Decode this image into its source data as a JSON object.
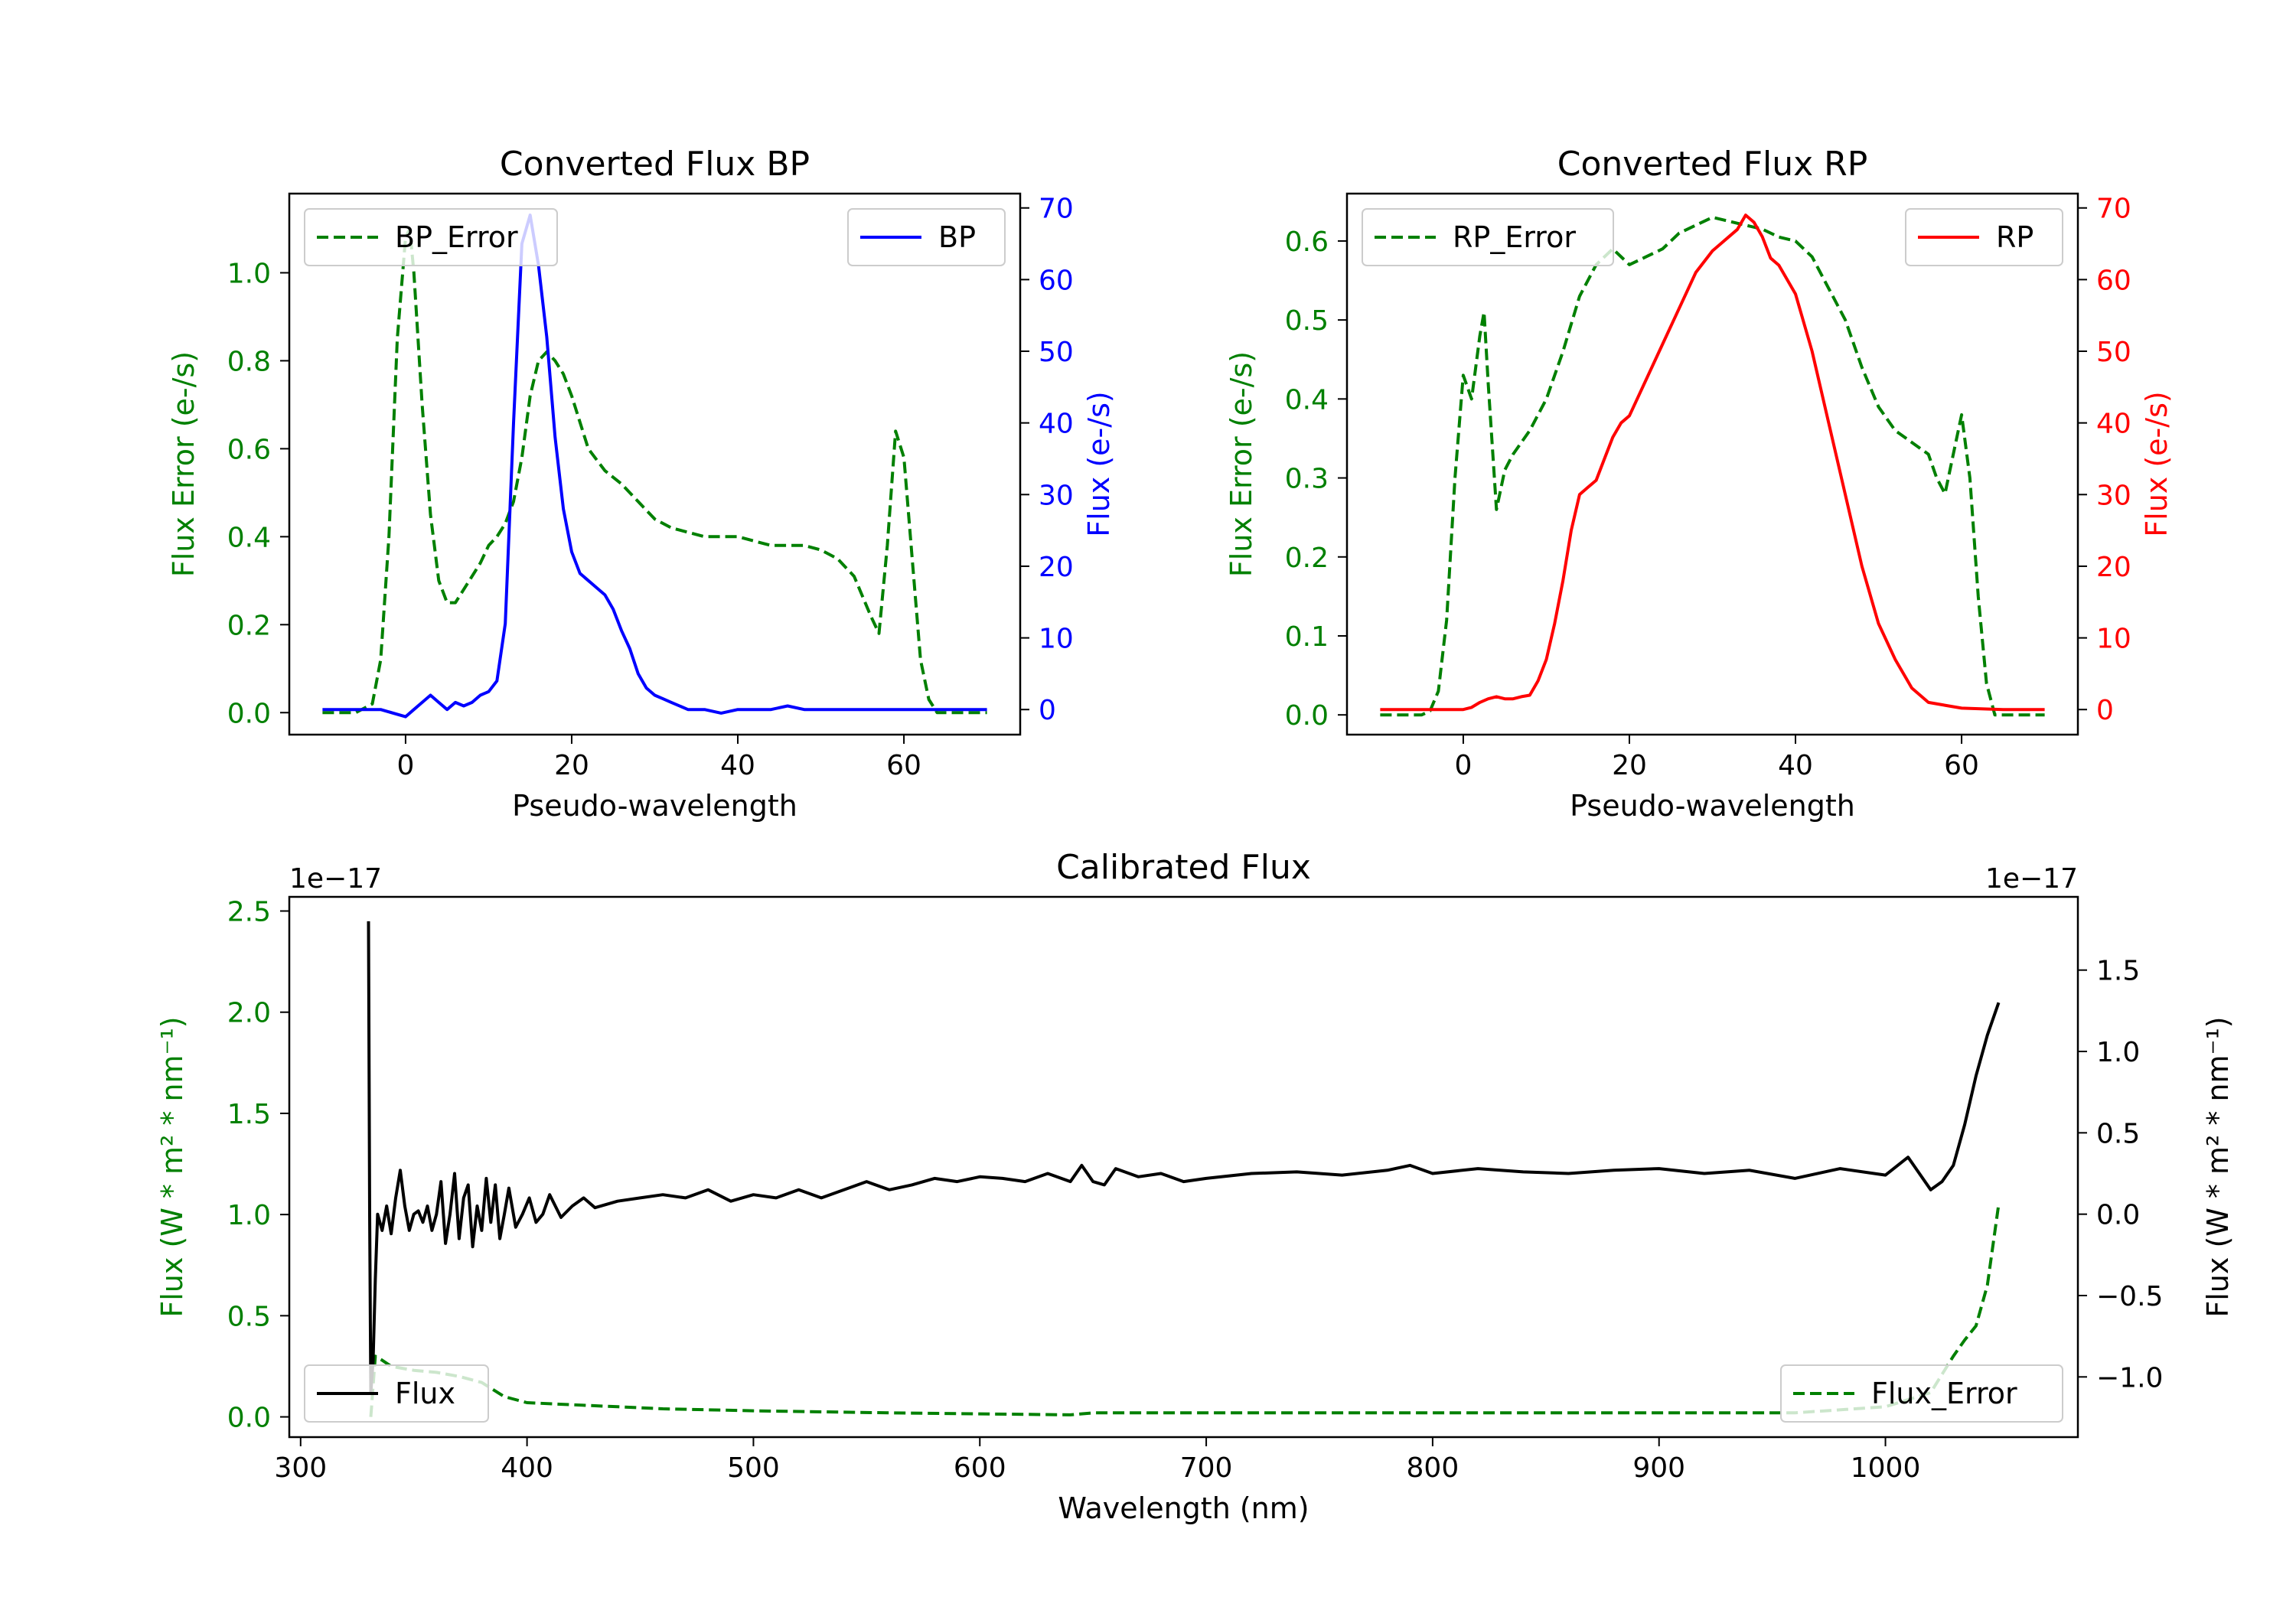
{
  "chart_data": [
    {
      "id": "bp",
      "type": "line",
      "title": "Converted Flux BP",
      "xlabel": "Pseudo-wavelength",
      "xlim": [
        -14,
        74
      ],
      "xticks": [
        0,
        20,
        40,
        60
      ],
      "left_axis": {
        "label": "Flux Error (e-/s)",
        "color": "#008000",
        "ylim": [
          -0.05,
          1.18
        ],
        "ticks": [
          0.0,
          0.2,
          0.4,
          0.6,
          0.8,
          1.0
        ],
        "tick_labels": [
          "0.0",
          "0.2",
          "0.4",
          "0.6",
          "0.8",
          "1.0"
        ]
      },
      "right_axis": {
        "label": "Flux (e-/s)",
        "color": "#0000ff",
        "ylim": [
          -3.5,
          72
        ],
        "ticks": [
          0,
          10,
          20,
          30,
          40,
          50,
          60,
          70
        ],
        "tick_labels": [
          "0",
          "10",
          "20",
          "30",
          "40",
          "50",
          "60",
          "70"
        ]
      },
      "legend_left": {
        "label": "BP_Error",
        "position": "upper-left"
      },
      "legend_right": {
        "label": "BP",
        "position": "upper-right"
      },
      "series": [
        {
          "name": "BP_Error",
          "axis": "left",
          "color": "#008000",
          "dash": true,
          "x": [
            -10,
            -6,
            -4,
            -3,
            -2,
            -1,
            0,
            0.5,
            1,
            2,
            3,
            4,
            5,
            6,
            7,
            8,
            9,
            10,
            11,
            12,
            13,
            14,
            15,
            16,
            17,
            18,
            19,
            20,
            22,
            24,
            26,
            28,
            30,
            32,
            34,
            36,
            38,
            40,
            42,
            44,
            46,
            48,
            50,
            52,
            54,
            56,
            57,
            58,
            59,
            60,
            61,
            62,
            63,
            64,
            66,
            70
          ],
          "y": [
            0.0,
            0.0,
            0.02,
            0.12,
            0.4,
            0.85,
            1.08,
            1.1,
            1.0,
            0.7,
            0.45,
            0.3,
            0.25,
            0.25,
            0.28,
            0.31,
            0.34,
            0.38,
            0.4,
            0.43,
            0.48,
            0.58,
            0.72,
            0.8,
            0.82,
            0.8,
            0.77,
            0.72,
            0.6,
            0.55,
            0.52,
            0.48,
            0.44,
            0.42,
            0.41,
            0.4,
            0.4,
            0.4,
            0.39,
            0.38,
            0.38,
            0.38,
            0.37,
            0.35,
            0.31,
            0.22,
            0.18,
            0.38,
            0.64,
            0.58,
            0.35,
            0.12,
            0.03,
            0.0,
            0.0,
            0.0
          ]
        },
        {
          "name": "BP",
          "axis": "right",
          "color": "#0000ff",
          "dash": false,
          "x": [
            -10,
            -3,
            0,
            1,
            2,
            3,
            4,
            5,
            6,
            7,
            8,
            9,
            10,
            11,
            12,
            13,
            14,
            15,
            16,
            17,
            18,
            19,
            20,
            21,
            22,
            23,
            24,
            25,
            26,
            27,
            28,
            29,
            30,
            31,
            32,
            34,
            36,
            38,
            40,
            42,
            44,
            46,
            48,
            50,
            55,
            60,
            65,
            70
          ],
          "y": [
            0,
            0,
            -1,
            0,
            1,
            2,
            1,
            0,
            1,
            0.5,
            1,
            2,
            2.5,
            4,
            12,
            40,
            65,
            69,
            62,
            52,
            38,
            28,
            22,
            19,
            18,
            17,
            16,
            14,
            11,
            8.5,
            5,
            3,
            2,
            1.5,
            1,
            0,
            0,
            -0.5,
            0,
            0,
            0,
            0.5,
            0,
            0,
            0,
            0,
            0,
            0
          ]
        }
      ]
    },
    {
      "id": "rp",
      "type": "line",
      "title": "Converted Flux RP",
      "xlabel": "Pseudo-wavelength",
      "xlim": [
        -14,
        74
      ],
      "xticks": [
        0,
        20,
        40,
        60
      ],
      "left_axis": {
        "label": "Flux Error (e-/s)",
        "color": "#008000",
        "ylim": [
          -0.025,
          0.66
        ],
        "ticks": [
          0.0,
          0.1,
          0.2,
          0.3,
          0.4,
          0.5,
          0.6
        ],
        "tick_labels": [
          "0.0",
          "0.1",
          "0.2",
          "0.3",
          "0.4",
          "0.5",
          "0.6"
        ]
      },
      "right_axis": {
        "label": "Flux (e-/s)",
        "color": "#ff0000",
        "ylim": [
          -3.5,
          72
        ],
        "ticks": [
          0,
          10,
          20,
          30,
          40,
          50,
          60,
          70
        ],
        "tick_labels": [
          "0",
          "10",
          "20",
          "30",
          "40",
          "50",
          "60",
          "70"
        ]
      },
      "legend_left": {
        "label": "RP_Error",
        "position": "upper-left"
      },
      "legend_right": {
        "label": "RP",
        "position": "upper-right"
      },
      "series": [
        {
          "name": "RP_Error",
          "axis": "left",
          "color": "#008000",
          "dash": true,
          "x": [
            -10,
            -5,
            -4,
            -3,
            -2,
            -1,
            0,
            1,
            2,
            2.5,
            3,
            4,
            5,
            6,
            8,
            10,
            12,
            14,
            16,
            18,
            20,
            22,
            24,
            26,
            28,
            30,
            32,
            34,
            36,
            38,
            40,
            42,
            44,
            46,
            48,
            50,
            52,
            54,
            56,
            57,
            58,
            59,
            60,
            61,
            62,
            63,
            64,
            70
          ],
          "y": [
            0.0,
            0.0,
            0.005,
            0.03,
            0.12,
            0.3,
            0.43,
            0.4,
            0.48,
            0.51,
            0.42,
            0.26,
            0.31,
            0.33,
            0.36,
            0.4,
            0.46,
            0.53,
            0.57,
            0.59,
            0.57,
            0.58,
            0.59,
            0.61,
            0.62,
            0.63,
            0.625,
            0.62,
            0.615,
            0.605,
            0.6,
            0.58,
            0.54,
            0.5,
            0.44,
            0.39,
            0.36,
            0.345,
            0.33,
            0.3,
            0.28,
            0.33,
            0.38,
            0.3,
            0.15,
            0.04,
            0.0,
            0.0
          ]
        },
        {
          "name": "RP",
          "axis": "right",
          "color": "#ff0000",
          "dash": false,
          "x": [
            -10,
            0,
            1,
            2,
            3,
            4,
            5,
            6,
            7,
            8,
            9,
            10,
            11,
            12,
            13,
            14,
            15,
            16,
            17,
            18,
            19,
            20,
            22,
            24,
            26,
            28,
            30,
            31,
            32,
            33,
            34,
            35,
            36,
            37,
            38,
            40,
            42,
            44,
            46,
            48,
            50,
            52,
            54,
            56,
            60,
            65,
            70
          ],
          "y": [
            0,
            0,
            0.3,
            1,
            1.5,
            1.8,
            1.5,
            1.5,
            1.8,
            2,
            4,
            7,
            12,
            18,
            25,
            30,
            31,
            32,
            35,
            38,
            40,
            41,
            46,
            51,
            56,
            61,
            64,
            65,
            66,
            67,
            69,
            68,
            66,
            63,
            62,
            58,
            50,
            40,
            30,
            20,
            12,
            7,
            3,
            1,
            0.2,
            0,
            0
          ]
        }
      ]
    },
    {
      "id": "cal",
      "type": "line",
      "title": "Calibrated Flux",
      "xlabel": "Wavelength (nm)",
      "xlim": [
        295,
        1085
      ],
      "xticks": [
        300,
        400,
        500,
        600,
        700,
        800,
        900,
        1000
      ],
      "left_axis": {
        "label": "Flux (W * m² * nm⁻¹)",
        "color": "#008000",
        "ylim": [
          -0.1,
          2.57
        ],
        "ticks": [
          0.0,
          0.5,
          1.0,
          1.5,
          2.0,
          2.5
        ],
        "tick_labels": [
          "0.0",
          "0.5",
          "1.0",
          "1.5",
          "2.0",
          "2.5"
        ],
        "multiplier": "1e−17"
      },
      "right_axis": {
        "label": "Flux (W * m² * nm⁻¹)",
        "color": "#000000",
        "ylim": [
          -1.37,
          1.95
        ],
        "ticks": [
          -1.0,
          -0.5,
          0.0,
          0.5,
          1.0,
          1.5
        ],
        "tick_labels": [
          "−1.0",
          "−0.5",
          "0.0",
          "0.5",
          "1.0",
          "1.5"
        ],
        "multiplier": "1e−17"
      },
      "legend_left": {
        "label": "Flux",
        "position": "lower-left"
      },
      "legend_right": {
        "label": "Flux_Error",
        "position": "lower-right"
      },
      "series": [
        {
          "name": "Flux_Error",
          "axis": "left",
          "color": "#008000",
          "dash": true,
          "x": [
            331,
            333,
            336,
            340,
            350,
            360,
            370,
            380,
            390,
            400,
            420,
            440,
            460,
            500,
            560,
            600,
            640,
            650,
            700,
            800,
            900,
            960,
            1000,
            1020,
            1030,
            1035,
            1040,
            1045,
            1050
          ],
          "y": [
            0.0,
            0.3,
            0.28,
            0.25,
            0.23,
            0.22,
            0.2,
            0.17,
            0.1,
            0.07,
            0.06,
            0.05,
            0.04,
            0.03,
            0.02,
            0.015,
            0.01,
            0.02,
            0.02,
            0.02,
            0.02,
            0.02,
            0.05,
            0.12,
            0.3,
            0.38,
            0.45,
            0.65,
            1.05
          ]
        },
        {
          "name": "Flux",
          "axis": "right",
          "color": "#000000",
          "dash": false,
          "x": [
            330,
            330.5,
            331,
            332,
            333,
            334,
            336,
            338,
            340,
            342,
            344,
            346,
            348,
            350,
            352,
            354,
            356,
            358,
            360,
            362,
            364,
            366,
            368,
            370,
            372,
            374,
            376,
            378,
            380,
            382,
            384,
            386,
            388,
            390,
            392,
            395,
            398,
            401,
            404,
            407,
            410,
            415,
            420,
            425,
            430,
            440,
            450,
            460,
            470,
            480,
            490,
            500,
            510,
            520,
            530,
            540,
            550,
            560,
            570,
            580,
            590,
            600,
            610,
            620,
            630,
            640,
            645,
            650,
            655,
            660,
            670,
            680,
            690,
            700,
            720,
            740,
            760,
            780,
            790,
            800,
            820,
            840,
            860,
            880,
            900,
            920,
            940,
            960,
            980,
            1000,
            1010,
            1020,
            1025,
            1030,
            1035,
            1040,
            1045,
            1050
          ],
          "y": [
            1.8,
            0.0,
            -1.1,
            -0.9,
            -0.4,
            0.0,
            -0.1,
            0.05,
            -0.12,
            0.1,
            0.27,
            0.05,
            -0.1,
            0.0,
            0.02,
            -0.05,
            0.05,
            -0.1,
            0.0,
            0.2,
            -0.18,
            0.0,
            0.25,
            -0.15,
            0.1,
            0.18,
            -0.2,
            0.05,
            -0.1,
            0.22,
            -0.05,
            0.18,
            -0.15,
            0.0,
            0.16,
            -0.08,
            0.0,
            0.1,
            -0.05,
            0.0,
            0.12,
            -0.02,
            0.05,
            0.1,
            0.04,
            0.08,
            0.1,
            0.12,
            0.1,
            0.15,
            0.08,
            0.12,
            0.1,
            0.15,
            0.1,
            0.15,
            0.2,
            0.15,
            0.18,
            0.22,
            0.2,
            0.23,
            0.22,
            0.2,
            0.25,
            0.2,
            0.3,
            0.2,
            0.18,
            0.28,
            0.23,
            0.25,
            0.2,
            0.22,
            0.25,
            0.26,
            0.24,
            0.27,
            0.3,
            0.25,
            0.28,
            0.26,
            0.25,
            0.27,
            0.28,
            0.25,
            0.27,
            0.22,
            0.28,
            0.24,
            0.35,
            0.15,
            0.2,
            0.3,
            0.55,
            0.85,
            1.1,
            1.3
          ]
        }
      ]
    }
  ]
}
